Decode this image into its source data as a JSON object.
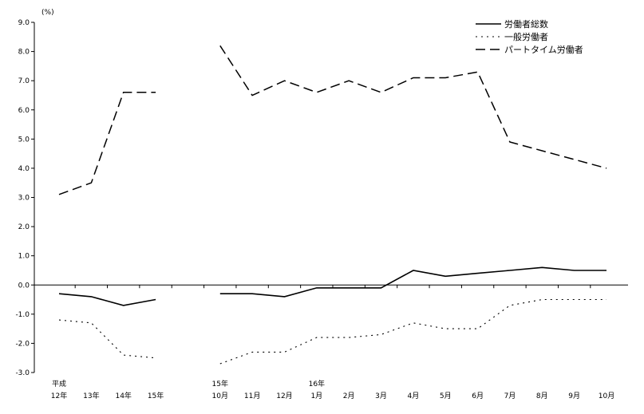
{
  "chart_data": {
    "type": "line",
    "unit_label": "(%)",
    "ylim": [
      -3.0,
      9.0
    ],
    "y_ticks": [
      "9.0",
      "8.0",
      "7.0",
      "6.0",
      "5.0",
      "4.0",
      "3.0",
      "2.0",
      "1.0",
      "0.0",
      "-1.0",
      "-2.0",
      "-3.0"
    ],
    "x_slots": [
      {
        "lines": [
          "平成",
          "12年"
        ]
      },
      {
        "lines": [
          "",
          "13年"
        ]
      },
      {
        "lines": [
          "",
          "14年"
        ]
      },
      {
        "lines": [
          "",
          "15年"
        ]
      },
      {
        "lines": [
          "",
          ""
        ]
      },
      {
        "lines": [
          "15年",
          "10月"
        ]
      },
      {
        "lines": [
          "",
          "11月"
        ]
      },
      {
        "lines": [
          "",
          "12月"
        ]
      },
      {
        "lines": [
          "16年",
          "1月"
        ]
      },
      {
        "lines": [
          "",
          "2月"
        ]
      },
      {
        "lines": [
          "",
          "3月"
        ]
      },
      {
        "lines": [
          "",
          "4月"
        ]
      },
      {
        "lines": [
          "",
          "5月"
        ]
      },
      {
        "lines": [
          "",
          "6月"
        ]
      },
      {
        "lines": [
          "",
          "7月"
        ]
      },
      {
        "lines": [
          "",
          "8月"
        ]
      },
      {
        "lines": [
          "",
          "9月"
        ]
      },
      {
        "lines": [
          "",
          "10月"
        ]
      }
    ],
    "series": [
      {
        "name": "労働者総数",
        "style": "solid",
        "values": [
          -0.3,
          -0.4,
          -0.7,
          -0.5,
          null,
          -0.3,
          -0.3,
          -0.4,
          -0.1,
          -0.1,
          -0.1,
          0.5,
          0.3,
          0.4,
          0.5,
          0.6,
          0.5,
          0.5
        ]
      },
      {
        "name": "一般労働者",
        "style": "dotted",
        "values": [
          -1.2,
          -1.3,
          -2.4,
          -2.5,
          null,
          -2.7,
          -2.3,
          -2.3,
          -1.8,
          -1.8,
          -1.7,
          -1.3,
          -1.5,
          -1.5,
          -0.7,
          -0.5,
          -0.5,
          -0.5
        ]
      },
      {
        "name": "パートタイム労働者",
        "style": "dashed",
        "values": [
          3.1,
          3.5,
          6.6,
          6.6,
          null,
          8.2,
          6.5,
          7.0,
          6.6,
          7.0,
          6.6,
          7.1,
          7.1,
          7.3,
          4.9,
          4.6,
          4.3,
          4.0
        ]
      }
    ],
    "legend_position": "top-right",
    "grid": false
  }
}
